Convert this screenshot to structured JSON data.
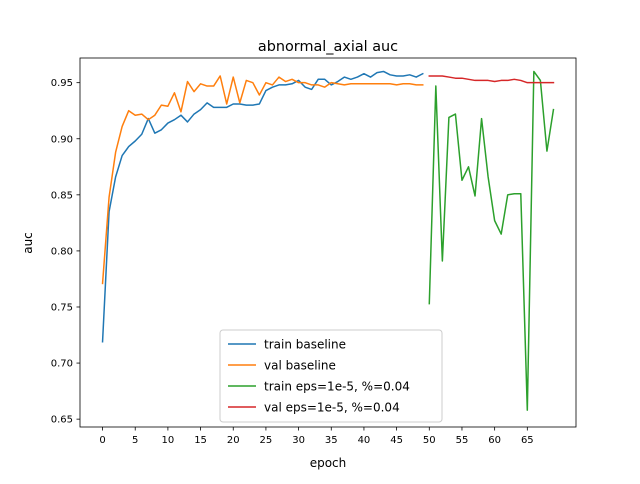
{
  "chart_data": {
    "type": "line",
    "title": "abnormal_axial auc",
    "xlabel": "epoch",
    "ylabel": "auc",
    "xlim": [
      -3.45,
      72.45
    ],
    "ylim": [
      0.643,
      0.972
    ],
    "xticks": [
      0,
      5,
      10,
      15,
      20,
      25,
      30,
      35,
      40,
      45,
      50,
      55,
      60,
      65
    ],
    "yticks": [
      0.65,
      0.7,
      0.75,
      0.8,
      0.85,
      0.9,
      0.95
    ],
    "ytick_labels": [
      "0.65",
      "0.70",
      "0.75",
      "0.80",
      "0.85",
      "0.90",
      "0.95"
    ],
    "grid": false,
    "legend_position": "bottom-center",
    "series": [
      {
        "name": "train baseline",
        "color": "#1f77b4",
        "x": [
          0,
          1,
          2,
          3,
          4,
          5,
          6,
          7,
          8,
          9,
          10,
          11,
          12,
          13,
          14,
          15,
          16,
          17,
          18,
          19,
          20,
          21,
          22,
          23,
          24,
          25,
          26,
          27,
          28,
          29,
          30,
          31,
          32,
          33,
          34,
          35,
          36,
          37,
          38,
          39,
          40,
          41,
          42,
          43,
          44,
          45,
          46,
          47,
          48,
          49
        ],
        "y": [
          0.719,
          0.835,
          0.866,
          0.885,
          0.893,
          0.898,
          0.904,
          0.918,
          0.905,
          0.908,
          0.914,
          0.917,
          0.921,
          0.915,
          0.922,
          0.926,
          0.932,
          0.928,
          0.928,
          0.928,
          0.931,
          0.931,
          0.93,
          0.93,
          0.931,
          0.943,
          0.946,
          0.948,
          0.948,
          0.949,
          0.952,
          0.946,
          0.944,
          0.953,
          0.953,
          0.948,
          0.951,
          0.955,
          0.953,
          0.955,
          0.958,
          0.955,
          0.959,
          0.96,
          0.957,
          0.956,
          0.956,
          0.957,
          0.955,
          0.958
        ]
      },
      {
        "name": "val baseline",
        "color": "#ff7f0e",
        "x": [
          0,
          1,
          2,
          3,
          4,
          5,
          6,
          7,
          8,
          9,
          10,
          11,
          12,
          13,
          14,
          15,
          16,
          17,
          18,
          19,
          20,
          21,
          22,
          23,
          24,
          25,
          26,
          27,
          28,
          29,
          30,
          31,
          32,
          33,
          34,
          35,
          36,
          37,
          38,
          39,
          40,
          41,
          42,
          43,
          44,
          45,
          46,
          47,
          48,
          49
        ],
        "y": [
          0.771,
          0.848,
          0.888,
          0.911,
          0.925,
          0.921,
          0.922,
          0.917,
          0.921,
          0.93,
          0.929,
          0.941,
          0.924,
          0.951,
          0.942,
          0.949,
          0.947,
          0.947,
          0.956,
          0.931,
          0.955,
          0.932,
          0.952,
          0.95,
          0.939,
          0.95,
          0.948,
          0.955,
          0.951,
          0.953,
          0.95,
          0.95,
          0.948,
          0.948,
          0.946,
          0.95,
          0.949,
          0.948,
          0.949,
          0.949,
          0.949,
          0.949,
          0.949,
          0.949,
          0.949,
          0.948,
          0.949,
          0.949,
          0.948,
          0.948
        ]
      },
      {
        "name": "train eps=1e-5, %=0.04",
        "color": "#2ca02c",
        "x": [
          50,
          51,
          52,
          53,
          54,
          55,
          56,
          57,
          58,
          59,
          60,
          61,
          62,
          63,
          64,
          65,
          66,
          67,
          68,
          69
        ],
        "y": [
          0.753,
          0.947,
          0.791,
          0.919,
          0.922,
          0.863,
          0.875,
          0.849,
          0.918,
          0.866,
          0.827,
          0.815,
          0.85,
          0.851,
          0.851,
          0.658,
          0.96,
          0.952,
          0.889,
          0.926
        ]
      },
      {
        "name": "val eps=1e-5, %=0.04",
        "color": "#d62728",
        "x": [
          50,
          51,
          52,
          53,
          54,
          55,
          56,
          57,
          58,
          59,
          60,
          61,
          62,
          63,
          64,
          65,
          66,
          67,
          68,
          69
        ],
        "y": [
          0.956,
          0.956,
          0.956,
          0.955,
          0.954,
          0.954,
          0.953,
          0.952,
          0.952,
          0.952,
          0.951,
          0.952,
          0.952,
          0.953,
          0.952,
          0.95,
          0.95,
          0.95,
          0.95,
          0.95
        ]
      }
    ]
  }
}
